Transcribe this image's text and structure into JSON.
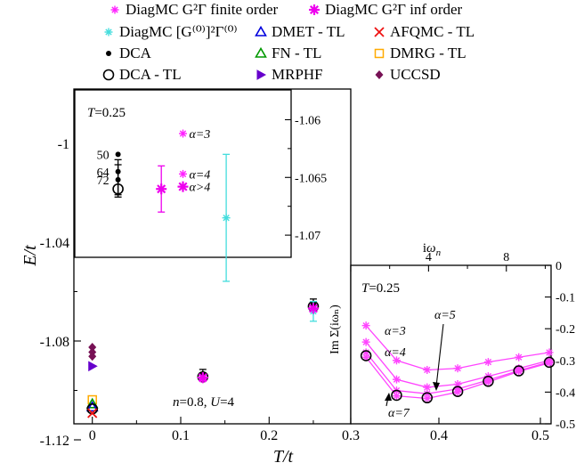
{
  "colors": {
    "finite_order": "#ff22ff",
    "inf_order": "#ee00ee",
    "g0": "#44dddd",
    "dmet": "#0000dd",
    "afqmc": "#ee1111",
    "dca": "#000000",
    "fn": "#009900",
    "dmrg": "#ffaa00",
    "mrphf": "#6600cc",
    "uccsd": "#771155",
    "inset_line": "#ff44ff"
  },
  "legend": [
    {
      "key": "finite",
      "label": "DiagMC G²Γ finite order",
      "marker": "star",
      "color_key": "finite_order"
    },
    {
      "key": "inf",
      "label": "DiagMC G²Γ inf order",
      "marker": "bigstar",
      "color_key": "inf_order"
    },
    {
      "key": "g0",
      "label": "DiagMC [G⁽⁰⁾]²Γ⁽⁰⁾",
      "marker": "star",
      "color_key": "g0"
    },
    {
      "key": "dmet",
      "label": "DMET - TL",
      "marker": "triangle",
      "color_key": "dmet"
    },
    {
      "key": "afqmc",
      "label": "AFQMC - TL",
      "marker": "x",
      "color_key": "afqmc"
    },
    {
      "key": "dca",
      "label": "DCA",
      "marker": "dot",
      "color_key": "dca"
    },
    {
      "key": "fn",
      "label": "FN - TL",
      "marker": "triangle",
      "color_key": "fn"
    },
    {
      "key": "dmrg",
      "label": "DMRG - TL",
      "marker": "square",
      "color_key": "dmrg"
    },
    {
      "key": "dcatl",
      "label": "DCA - TL",
      "marker": "circle",
      "color_key": "dca"
    },
    {
      "key": "mrphf",
      "label": "MRPHF",
      "marker": "rtriangle",
      "color_key": "mrphf"
    },
    {
      "key": "uccsd",
      "label": "UCCSD",
      "marker": "diamond",
      "color_key": "uccsd"
    }
  ],
  "chart_data": [
    {
      "id": "main",
      "type": "scatter",
      "xlabel": "T/t",
      "ylabel": "E/t",
      "xlim": [
        -0.03,
        0.28
      ],
      "ylim": [
        -1.12,
        -1.0
      ],
      "xticks": [
        0,
        0.1,
        0.2
      ],
      "xtick_labels": [
        "0",
        "0.1",
        "0.2"
      ],
      "yticks": [
        -1.12,
        -1.08,
        -1.04,
        -1
      ],
      "ytick_labels": [
        "-1.12",
        "-1.08",
        "-1.04",
        "-1"
      ],
      "annotation": "n=0.8, U=4",
      "series": [
        {
          "marker_key": "uccsd",
          "points": [
            {
              "x": 0,
              "y": -1.0825
            },
            {
              "x": 0,
              "y": -1.0845
            },
            {
              "x": 0,
              "y": -1.0862
            }
          ]
        },
        {
          "marker_key": "mrphf",
          "points": [
            {
              "x": 0,
              "y": -1.0902
            }
          ]
        },
        {
          "marker_key": "dmrg",
          "points": [
            {
              "x": 0,
              "y": -1.1038
            }
          ]
        },
        {
          "marker_key": "fn",
          "points": [
            {
              "x": 0,
              "y": -1.1055
            }
          ]
        },
        {
          "marker_key": "dmet",
          "points": [
            {
              "x": 0,
              "y": -1.1068
            }
          ]
        },
        {
          "marker_key": "dcatl",
          "points": [
            {
              "x": 0,
              "y": -1.1075
            }
          ]
        },
        {
          "marker_key": "afqmc",
          "points": [
            {
              "x": 0,
              "y": -1.1092
            }
          ]
        },
        {
          "marker_key": "dca",
          "points": [
            {
              "x": 0.125,
              "y": -1.0935,
              "err": 0.002
            },
            {
              "x": 0.25,
              "y": -1.065,
              "err": 0.002
            }
          ]
        },
        {
          "marker_key": "dcatl",
          "points": [
            {
              "x": 0.125,
              "y": -1.0945
            },
            {
              "x": 0.25,
              "y": -1.066
            }
          ]
        },
        {
          "marker_key": "finite",
          "points": [
            {
              "x": 0.125,
              "y": -1.0955
            },
            {
              "x": 0.25,
              "y": -1.0672
            }
          ]
        },
        {
          "marker_key": "g0",
          "points": [
            {
              "x": 0.25,
              "y": -1.068,
              "err": 0.004
            }
          ]
        },
        {
          "marker_key": "inf",
          "points": [
            {
              "x": 0.125,
              "y": -1.0948
            },
            {
              "x": 0.25,
              "y": -1.0668
            }
          ]
        }
      ]
    },
    {
      "id": "inset_energy",
      "type": "scatter",
      "title": "T=0.25",
      "ylim": [
        -1.073,
        -1.0585
      ],
      "yticks": [
        -1.06,
        -1.065,
        -1.07
      ],
      "ytick_labels": [
        "-1.06",
        "-1.065",
        "-1.07"
      ],
      "ytick_side": "right",
      "points": [
        {
          "marker_key": "dca",
          "label": "50",
          "x": 0.2,
          "y": -1.063
        },
        {
          "marker_key": "dca",
          "label": "64",
          "x": 0.2,
          "y": -1.0645
        },
        {
          "marker_key": "dca",
          "label": "72",
          "x": 0.2,
          "y": -1.0652,
          "err": 0.0013
        },
        {
          "marker_key": "dcatl",
          "x": 0.2,
          "y": -1.066
        },
        {
          "marker_key": "finite",
          "label": "α=3",
          "x": 0.5,
          "y": -1.0612
        },
        {
          "marker_key": "finite",
          "label": "α=4",
          "x": 0.5,
          "y": -1.0647
        },
        {
          "marker_key": "inf",
          "label": "α>4",
          "x": 0.5,
          "y": -1.0658
        },
        {
          "marker_key": "inf",
          "x": 0.4,
          "y": -1.066,
          "err": 0.002
        },
        {
          "marker_key": "g0",
          "x": 0.7,
          "y": -1.0685,
          "err": 0.0055
        }
      ]
    },
    {
      "id": "inset_selfenergy",
      "type": "line",
      "title": "T=0.25",
      "xlabel": "iωₙ",
      "ylabel": "Im Σ(iωₙ)",
      "xlim": [
        0,
        10.3
      ],
      "ylim": [
        -0.5,
        0
      ],
      "xticks": [
        0,
        4,
        8
      ],
      "xtick_labels": [
        "0",
        "4",
        "8"
      ],
      "yticks": [
        0,
        -0.1,
        -0.2,
        -0.3,
        -0.4,
        -0.5
      ],
      "ytick_labels": [
        "0",
        "-0.1",
        "-0.2",
        "-0.3",
        "-0.4",
        "-0.5"
      ],
      "x": [
        0.785,
        2.356,
        3.927,
        5.498,
        7.069,
        8.639,
        10.21
      ],
      "series": [
        {
          "name": "α=3",
          "values": [
            -0.19,
            -0.3,
            -0.33,
            -0.325,
            -0.305,
            -0.29,
            -0.275
          ]
        },
        {
          "name": "α=4",
          "values": [
            -0.242,
            -0.36,
            -0.385,
            -0.375,
            -0.35,
            -0.325,
            -0.3
          ]
        },
        {
          "name": "α=5",
          "values": [
            -0.275,
            -0.395,
            -0.405,
            -0.39,
            -0.362,
            -0.332,
            -0.305
          ]
        },
        {
          "name": "α=7",
          "values": [
            -0.29,
            -0.412,
            -0.42,
            -0.4,
            -0.368,
            -0.335,
            -0.308
          ]
        }
      ],
      "circles_values": [
        -0.285,
        -0.41,
        -0.418,
        -0.398,
        -0.366,
        -0.333,
        -0.306
      ],
      "bottom_ticks": [
        0.3,
        0.4,
        0.5
      ],
      "bottom_tick_labels": [
        "0.3",
        "0.4",
        "0.5"
      ]
    }
  ],
  "labels": {
    "main_ylabel": "E/t",
    "main_xlabel": "T/t",
    "main_annot": "n=0.8, U=4",
    "inset1_title": "T=0.25",
    "inset2_title": "T=0.25",
    "inset2_xlabel": "iωₙ",
    "inset2_ylabel": "Im Σ(iωₙ)",
    "alpha3": "α=3",
    "alpha4": "α=4",
    "alpha5": "α=5",
    "alpha7": "α=7"
  }
}
